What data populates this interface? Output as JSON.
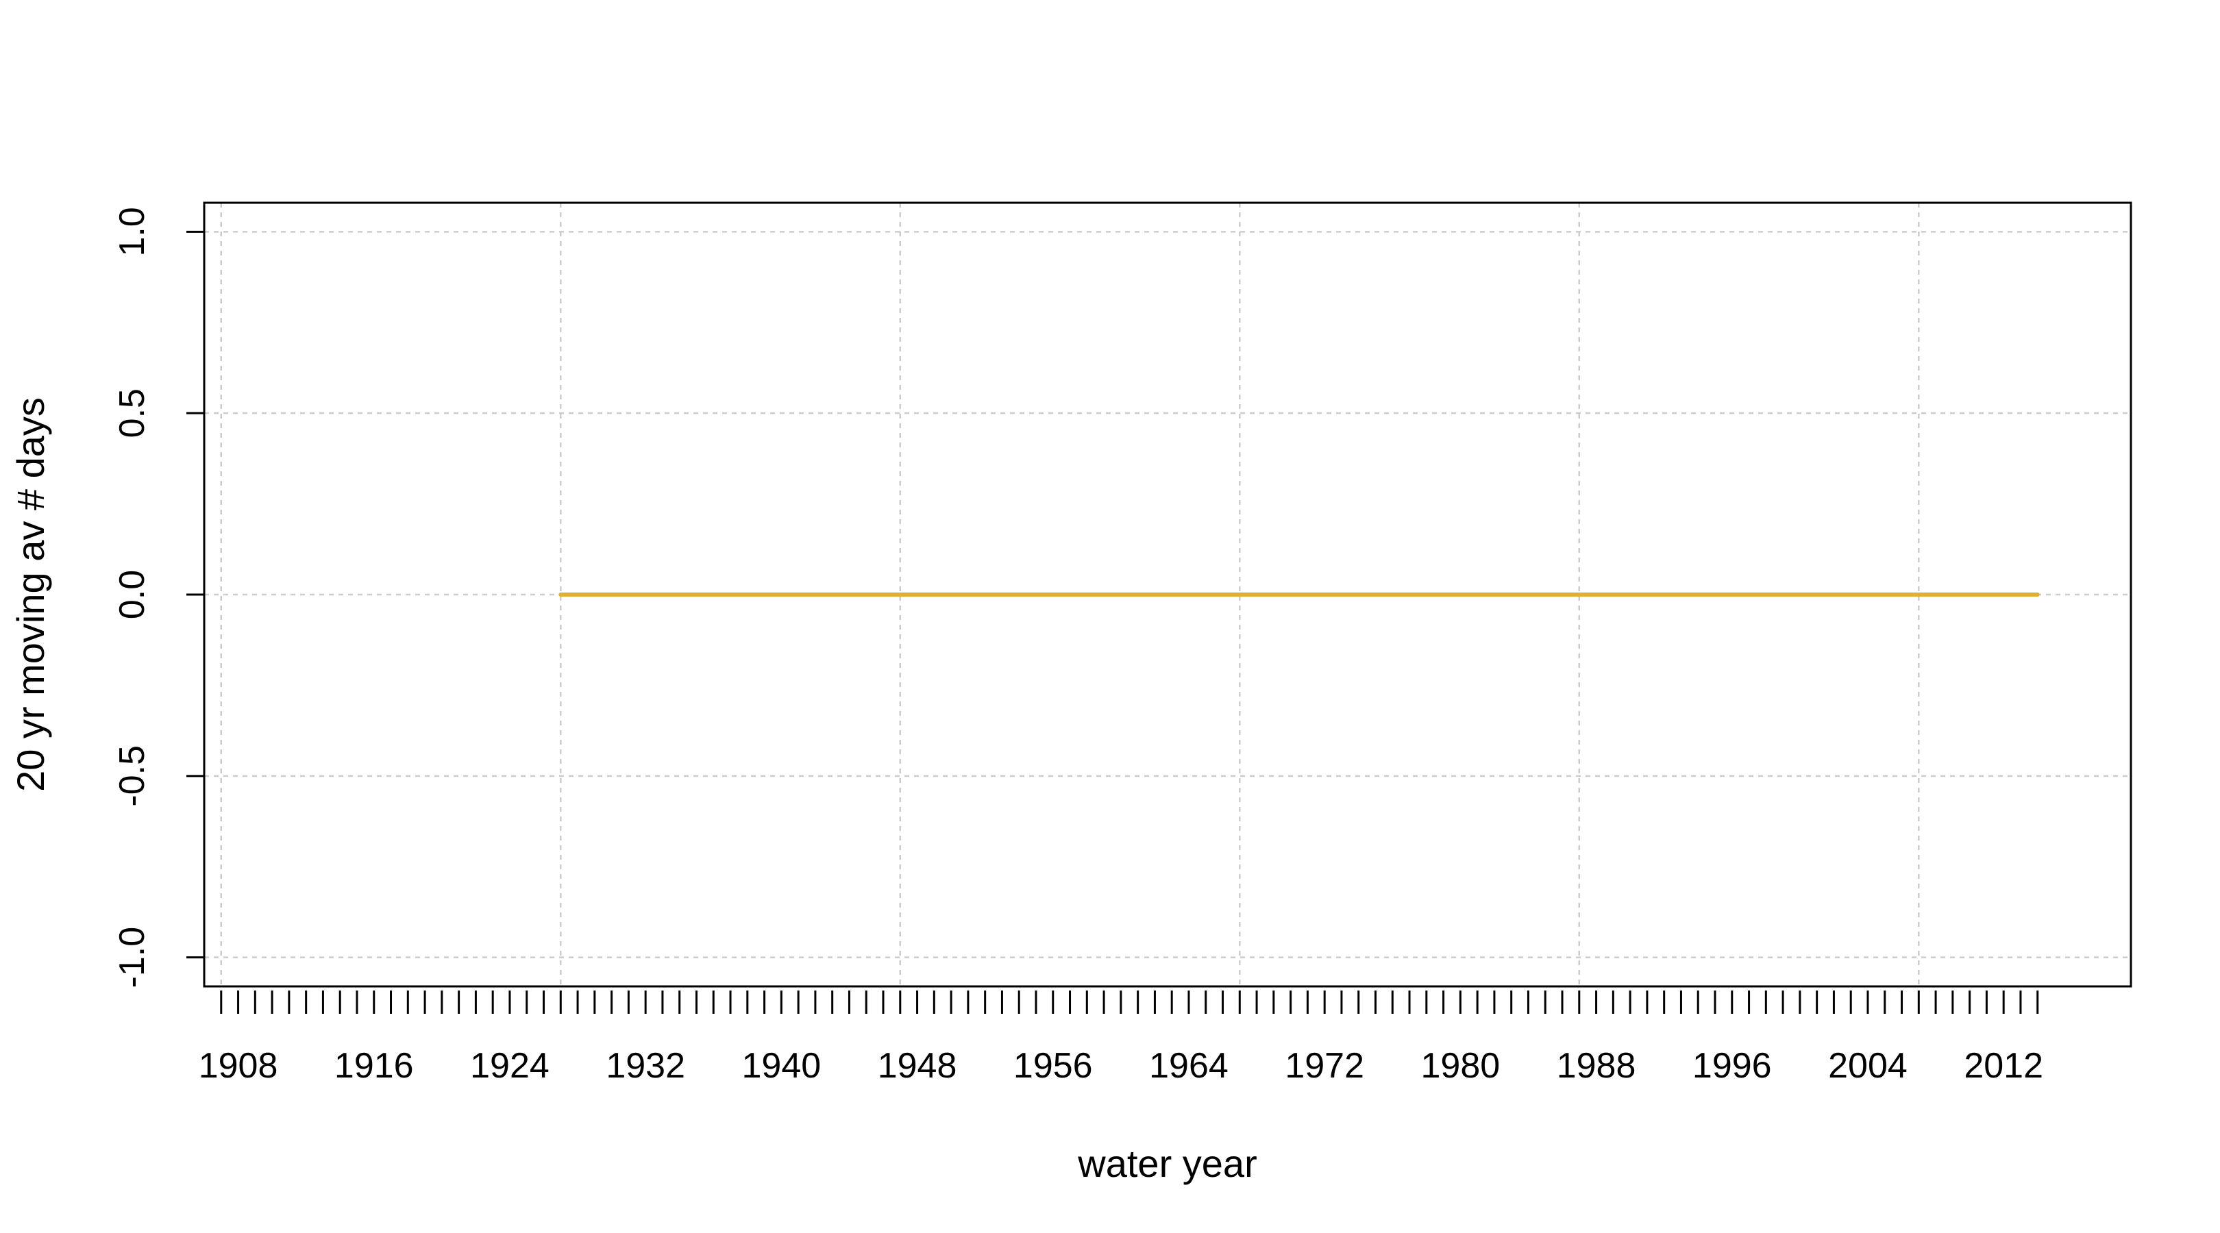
{
  "chart_data": {
    "type": "line",
    "title": "",
    "xlabel": "water year",
    "ylabel": "20 yr moving av # days",
    "xlim": [
      1906,
      2019.5
    ],
    "ylim": [
      -1.08,
      1.08
    ],
    "x_tick_labels": [
      "1908",
      "1916",
      "1924",
      "1932",
      "1940",
      "1948",
      "1956",
      "1964",
      "1972",
      "1980",
      "1988",
      "1996",
      "2004",
      "2012"
    ],
    "x_tick_values": [
      1908,
      1916,
      1924,
      1932,
      1940,
      1948,
      1956,
      1964,
      1972,
      1980,
      1988,
      1996,
      2004,
      2012
    ],
    "x_minor_tick_range": [
      1907,
      2014
    ],
    "y_ticks": [
      -1.0,
      -0.5,
      0.0,
      0.5,
      1.0
    ],
    "y_tick_labels": [
      "-1.0",
      "-0.5",
      "0.0",
      "0.5",
      "1.0"
    ],
    "grid": true,
    "grid_x_values": [
      1907,
      1927,
      1947,
      1967,
      1987,
      2007
    ],
    "grid_y_values": [
      -1.0,
      -0.5,
      0.0,
      0.5,
      1.0
    ],
    "series": [
      {
        "color": "#e0b030",
        "x": [
          1927,
          2014
        ],
        "values": [
          0,
          0
        ]
      }
    ]
  }
}
